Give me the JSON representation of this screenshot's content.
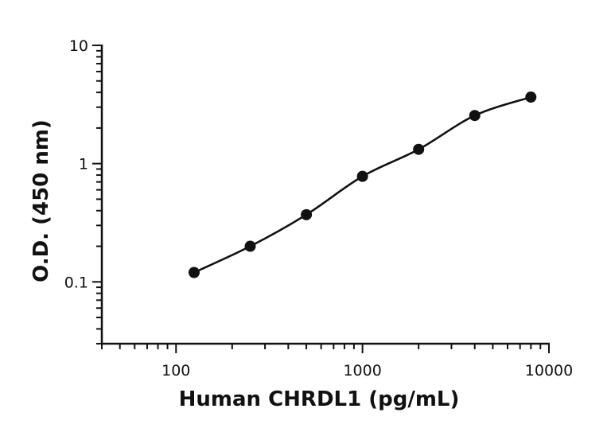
{
  "chart_data": {
    "type": "scatter",
    "title": "",
    "xlabel": "Human CHRDL1 (pg/mL)",
    "ylabel": "O.D. (450 nm)",
    "x_scale": "log",
    "y_scale": "log",
    "xlim": [
      40,
      10000
    ],
    "ylim": [
      0.03,
      10
    ],
    "x_ticks": [
      {
        "value": 100,
        "label": "100"
      },
      {
        "value": 1000,
        "label": "1000"
      },
      {
        "value": 10000,
        "label": "10000"
      }
    ],
    "y_ticks": [
      {
        "value": 0.1,
        "label": "0.1"
      },
      {
        "value": 1,
        "label": "1"
      },
      {
        "value": 10,
        "label": "10"
      }
    ],
    "grid": false,
    "legend": "none",
    "fit_curve": true,
    "colors": {
      "series": "#111111",
      "axis": "#111111"
    },
    "series": [
      {
        "x": [
          125,
          250,
          500,
          1000,
          2000,
          4000,
          8000
        ],
        "y": [
          0.12,
          0.2,
          0.37,
          0.78,
          1.32,
          2.55,
          3.65
        ]
      }
    ]
  }
}
